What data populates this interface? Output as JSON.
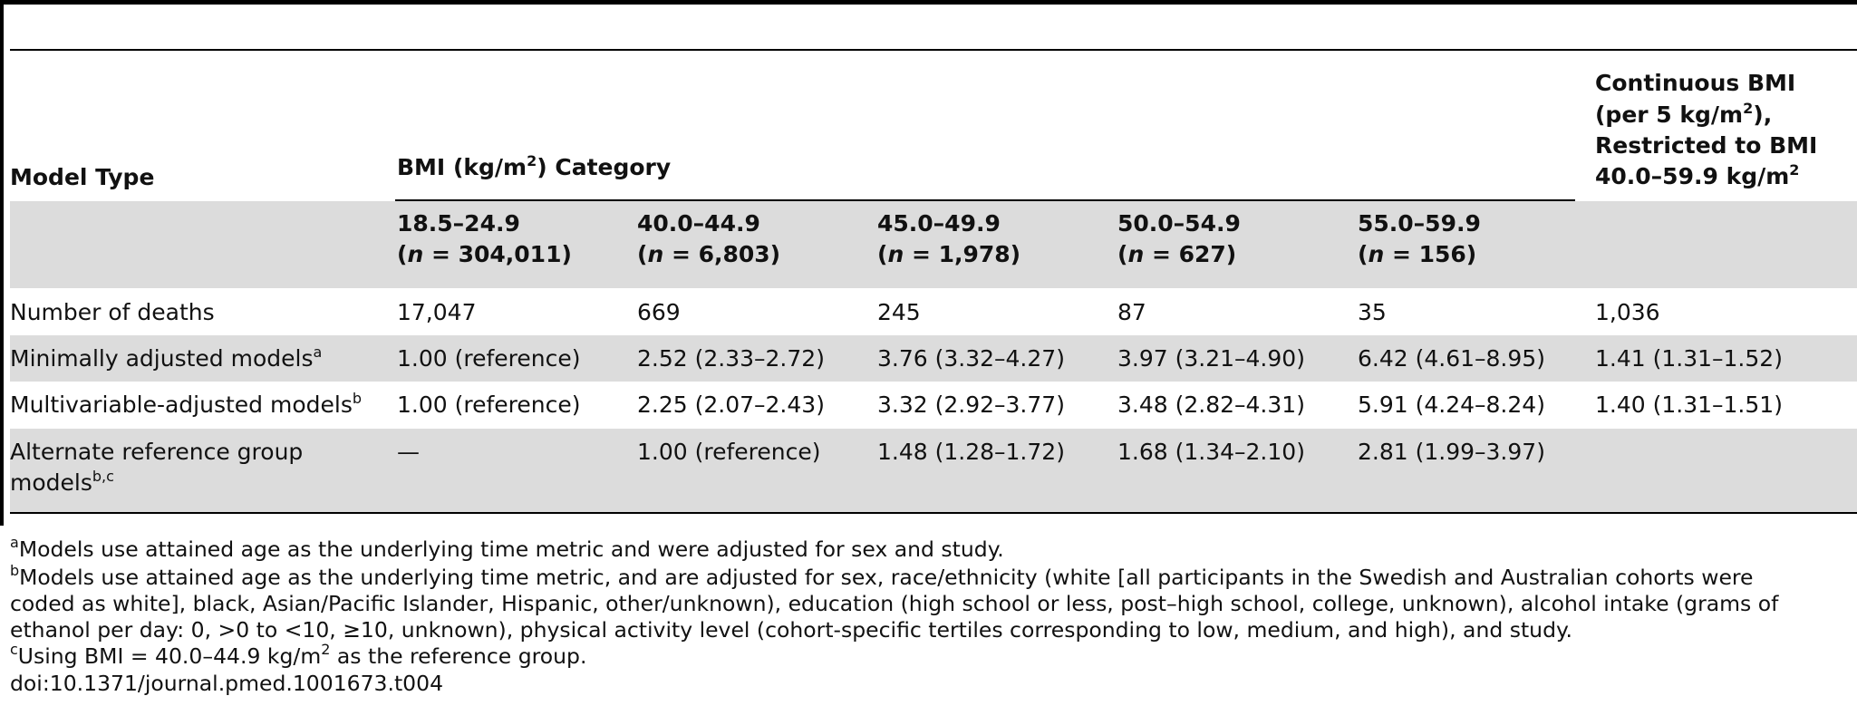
{
  "header": {
    "model_type": "Model Type",
    "bmi_prefix": "BMI (kg/m",
    "bmi_sup": "2",
    "bmi_suffix": ") Category",
    "continuous_line1": "Continuous BMI",
    "continuous_line2_pre": "(per 5 kg/m",
    "continuous_line2_sup": "2",
    "continuous_line2_post": "),",
    "continuous_line3": "Restricted to BMI",
    "continuous_line4_pre": "40.0–59.9 kg/m",
    "continuous_line4_sup": "2"
  },
  "categories": [
    {
      "range": "18.5–24.9",
      "n_label": "n",
      "n_value": " = 304,011)"
    },
    {
      "range": "40.0–44.9",
      "n_label": "n",
      "n_value": " = 6,803)"
    },
    {
      "range": "45.0–49.9",
      "n_label": "n",
      "n_value": " = 1,978)"
    },
    {
      "range": "50.0–54.9",
      "n_label": "n",
      "n_value": " = 627)"
    },
    {
      "range": "55.0–59.9",
      "n_label": "n",
      "n_value": " = 156)"
    }
  ],
  "rows": [
    {
      "label": "Number of deaths",
      "label_sup": "",
      "cells": [
        "17,047",
        "669",
        "245",
        "87",
        "35",
        "1,036"
      ]
    },
    {
      "label": "Minimally adjusted models",
      "label_sup": "a",
      "cells": [
        "1.00 (reference)",
        "2.52 (2.33–2.72)",
        "3.76 (3.32–4.27)",
        "3.97 (3.21–4.90)",
        "6.42 (4.61–8.95)",
        "1.41 (1.31–1.52)"
      ]
    },
    {
      "label": "Multivariable-adjusted models",
      "label_sup": "b",
      "cells": [
        "1.00 (reference)",
        "2.25 (2.07–2.43)",
        "3.32 (2.92–3.77)",
        "3.48 (2.82–4.31)",
        "5.91 (4.24–8.24)",
        "1.40 (1.31–1.51)"
      ]
    },
    {
      "label_line1": "Alternate reference group",
      "label_line2": "models",
      "label_sup": "b,c",
      "cells": [
        "—",
        "1.00 (reference)",
        "1.48 (1.28–1.72)",
        "1.68 (1.34–2.10)",
        "2.81 (1.99–3.97)",
        ""
      ]
    }
  ],
  "footnotes": {
    "a_mark": "a",
    "a_text": "Models use attained age as the underlying time metric and were adjusted for sex and study.",
    "b_mark": "b",
    "b_text_line1": "Models use attained age as the underlying time metric, and are adjusted for sex, race/ethnicity (white [all participants in the Swedish and Australian cohorts were",
    "b_text_line2": "coded as white], black, Asian/Pacific Islander, Hispanic, other/unknown), education (high school or less, post–high school, college, unknown), alcohol intake (grams of",
    "b_text_line3": "ethanol per day: 0, >0 to <10, ≥10, unknown), physical activity level (cohort-specific tertiles corresponding to low, medium, and high), and study.",
    "c_mark": "c",
    "c_text_pre": "Using BMI = 40.0–44.9 kg/m",
    "c_text_sup": "2",
    "c_text_post": " as the reference group.",
    "doi": "doi:10.1371/journal.pmed.1001673.t004"
  }
}
